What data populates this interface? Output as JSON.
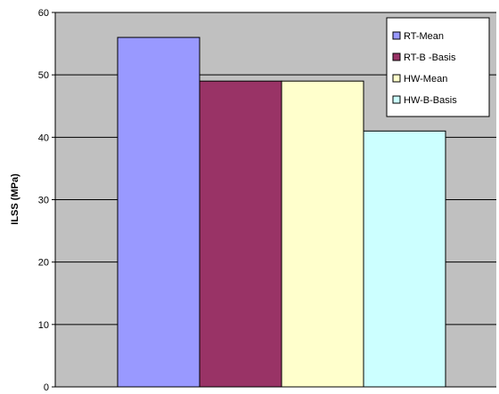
{
  "chart_data": {
    "type": "bar",
    "title": "",
    "xlabel": "",
    "ylabel": "ILSS (MPa)",
    "ylim": [
      0,
      60
    ],
    "yticks": [
      0,
      10,
      20,
      30,
      40,
      50,
      60
    ],
    "grid": true,
    "legend_position": "top-right",
    "plot_background": "#C0C0C0",
    "series": [
      {
        "name": "RT-Mean",
        "value": 56,
        "color": "#9999FF"
      },
      {
        "name": "RT-B -Basis",
        "value": 49,
        "color": "#993366"
      },
      {
        "name": "HW-Mean",
        "value": 49,
        "color": "#FFFFCC"
      },
      {
        "name": "HW-B-Basis",
        "value": 41,
        "color": "#CCFFFF"
      }
    ]
  }
}
